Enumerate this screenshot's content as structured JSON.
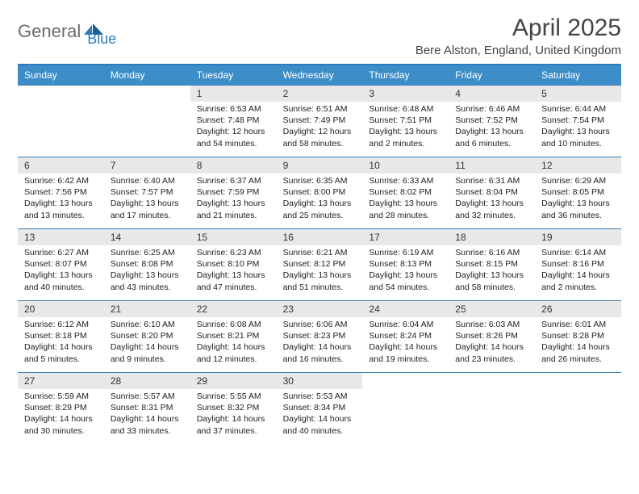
{
  "brand": {
    "name1": "General",
    "name2": "Blue"
  },
  "title": "April 2025",
  "subtitle": "Bere Alston, England, United Kingdom",
  "colors": {
    "header_bg": "#3d8dc9",
    "header_text": "#ffffff",
    "daynum_bg": "#e8e8e8",
    "border": "#2a7bbf",
    "logo_gray": "#6b6b6b",
    "logo_blue": "#2a7bbf"
  },
  "day_headers": [
    "Sunday",
    "Monday",
    "Tuesday",
    "Wednesday",
    "Thursday",
    "Friday",
    "Saturday"
  ],
  "weeks": [
    [
      {
        "n": "",
        "sr": "",
        "ss": "",
        "dl": "",
        "empty": true
      },
      {
        "n": "",
        "sr": "",
        "ss": "",
        "dl": "",
        "empty": true
      },
      {
        "n": "1",
        "sr": "Sunrise: 6:53 AM",
        "ss": "Sunset: 7:48 PM",
        "dl": "Daylight: 12 hours and 54 minutes."
      },
      {
        "n": "2",
        "sr": "Sunrise: 6:51 AM",
        "ss": "Sunset: 7:49 PM",
        "dl": "Daylight: 12 hours and 58 minutes."
      },
      {
        "n": "3",
        "sr": "Sunrise: 6:48 AM",
        "ss": "Sunset: 7:51 PM",
        "dl": "Daylight: 13 hours and 2 minutes."
      },
      {
        "n": "4",
        "sr": "Sunrise: 6:46 AM",
        "ss": "Sunset: 7:52 PM",
        "dl": "Daylight: 13 hours and 6 minutes."
      },
      {
        "n": "5",
        "sr": "Sunrise: 6:44 AM",
        "ss": "Sunset: 7:54 PM",
        "dl": "Daylight: 13 hours and 10 minutes."
      }
    ],
    [
      {
        "n": "6",
        "sr": "Sunrise: 6:42 AM",
        "ss": "Sunset: 7:56 PM",
        "dl": "Daylight: 13 hours and 13 minutes."
      },
      {
        "n": "7",
        "sr": "Sunrise: 6:40 AM",
        "ss": "Sunset: 7:57 PM",
        "dl": "Daylight: 13 hours and 17 minutes."
      },
      {
        "n": "8",
        "sr": "Sunrise: 6:37 AM",
        "ss": "Sunset: 7:59 PM",
        "dl": "Daylight: 13 hours and 21 minutes."
      },
      {
        "n": "9",
        "sr": "Sunrise: 6:35 AM",
        "ss": "Sunset: 8:00 PM",
        "dl": "Daylight: 13 hours and 25 minutes."
      },
      {
        "n": "10",
        "sr": "Sunrise: 6:33 AM",
        "ss": "Sunset: 8:02 PM",
        "dl": "Daylight: 13 hours and 28 minutes."
      },
      {
        "n": "11",
        "sr": "Sunrise: 6:31 AM",
        "ss": "Sunset: 8:04 PM",
        "dl": "Daylight: 13 hours and 32 minutes."
      },
      {
        "n": "12",
        "sr": "Sunrise: 6:29 AM",
        "ss": "Sunset: 8:05 PM",
        "dl": "Daylight: 13 hours and 36 minutes."
      }
    ],
    [
      {
        "n": "13",
        "sr": "Sunrise: 6:27 AM",
        "ss": "Sunset: 8:07 PM",
        "dl": "Daylight: 13 hours and 40 minutes."
      },
      {
        "n": "14",
        "sr": "Sunrise: 6:25 AM",
        "ss": "Sunset: 8:08 PM",
        "dl": "Daylight: 13 hours and 43 minutes."
      },
      {
        "n": "15",
        "sr": "Sunrise: 6:23 AM",
        "ss": "Sunset: 8:10 PM",
        "dl": "Daylight: 13 hours and 47 minutes."
      },
      {
        "n": "16",
        "sr": "Sunrise: 6:21 AM",
        "ss": "Sunset: 8:12 PM",
        "dl": "Daylight: 13 hours and 51 minutes."
      },
      {
        "n": "17",
        "sr": "Sunrise: 6:19 AM",
        "ss": "Sunset: 8:13 PM",
        "dl": "Daylight: 13 hours and 54 minutes."
      },
      {
        "n": "18",
        "sr": "Sunrise: 6:16 AM",
        "ss": "Sunset: 8:15 PM",
        "dl": "Daylight: 13 hours and 58 minutes."
      },
      {
        "n": "19",
        "sr": "Sunrise: 6:14 AM",
        "ss": "Sunset: 8:16 PM",
        "dl": "Daylight: 14 hours and 2 minutes."
      }
    ],
    [
      {
        "n": "20",
        "sr": "Sunrise: 6:12 AM",
        "ss": "Sunset: 8:18 PM",
        "dl": "Daylight: 14 hours and 5 minutes."
      },
      {
        "n": "21",
        "sr": "Sunrise: 6:10 AM",
        "ss": "Sunset: 8:20 PM",
        "dl": "Daylight: 14 hours and 9 minutes."
      },
      {
        "n": "22",
        "sr": "Sunrise: 6:08 AM",
        "ss": "Sunset: 8:21 PM",
        "dl": "Daylight: 14 hours and 12 minutes."
      },
      {
        "n": "23",
        "sr": "Sunrise: 6:06 AM",
        "ss": "Sunset: 8:23 PM",
        "dl": "Daylight: 14 hours and 16 minutes."
      },
      {
        "n": "24",
        "sr": "Sunrise: 6:04 AM",
        "ss": "Sunset: 8:24 PM",
        "dl": "Daylight: 14 hours and 19 minutes."
      },
      {
        "n": "25",
        "sr": "Sunrise: 6:03 AM",
        "ss": "Sunset: 8:26 PM",
        "dl": "Daylight: 14 hours and 23 minutes."
      },
      {
        "n": "26",
        "sr": "Sunrise: 6:01 AM",
        "ss": "Sunset: 8:28 PM",
        "dl": "Daylight: 14 hours and 26 minutes."
      }
    ],
    [
      {
        "n": "27",
        "sr": "Sunrise: 5:59 AM",
        "ss": "Sunset: 8:29 PM",
        "dl": "Daylight: 14 hours and 30 minutes."
      },
      {
        "n": "28",
        "sr": "Sunrise: 5:57 AM",
        "ss": "Sunset: 8:31 PM",
        "dl": "Daylight: 14 hours and 33 minutes."
      },
      {
        "n": "29",
        "sr": "Sunrise: 5:55 AM",
        "ss": "Sunset: 8:32 PM",
        "dl": "Daylight: 14 hours and 37 minutes."
      },
      {
        "n": "30",
        "sr": "Sunrise: 5:53 AM",
        "ss": "Sunset: 8:34 PM",
        "dl": "Daylight: 14 hours and 40 minutes."
      },
      {
        "n": "",
        "sr": "",
        "ss": "",
        "dl": "",
        "empty": true
      },
      {
        "n": "",
        "sr": "",
        "ss": "",
        "dl": "",
        "empty": true
      },
      {
        "n": "",
        "sr": "",
        "ss": "",
        "dl": "",
        "empty": true
      }
    ]
  ]
}
